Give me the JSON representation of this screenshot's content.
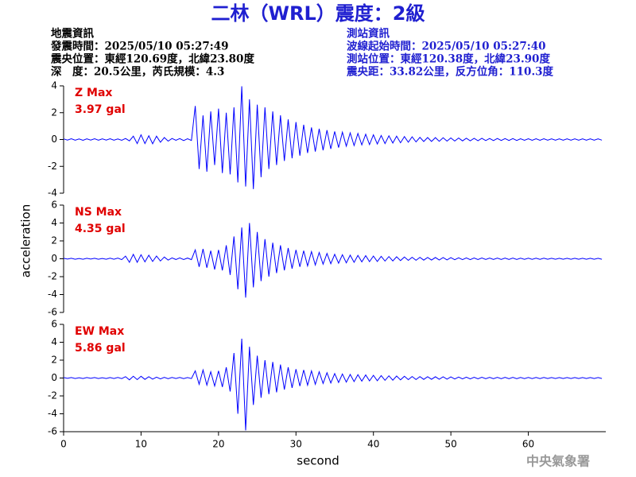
{
  "chart_data": {
    "type": "line",
    "title": "二林（WRL）震度：2級",
    "event_info": [
      "地震資訊",
      "發震時間：2025/05/10 05:27:49",
      "震央位置：東經120.69度，北緯23.80度",
      "深　度：20.5公里，芮氏規模：4.3"
    ],
    "station_info": [
      "測站資訊",
      "波線起始時間：2025/05/10 05:27:40",
      "測站位置：東經120.38度，北緯23.90度",
      "震央距：33.82公里，反方位角：110.3度"
    ],
    "xlabel": "second",
    "ylabel": "acceleration",
    "credit": "中央氣象署",
    "color": "#0000ff",
    "xlim": [
      0,
      70
    ],
    "xticks": [
      0,
      10,
      20,
      30,
      40,
      50,
      60
    ],
    "x": [
      0,
      0.5,
      1,
      1.5,
      2,
      2.5,
      3,
      3.5,
      4,
      4.5,
      5,
      5.5,
      6,
      6.5,
      7,
      7.5,
      8,
      8.5,
      9,
      9.5,
      10,
      10.5,
      11,
      11.5,
      12,
      12.5,
      13,
      13.5,
      14,
      14.5,
      15,
      15.5,
      16,
      16.5,
      17,
      17.5,
      18,
      18.5,
      19,
      19.5,
      20,
      20.5,
      21,
      21.5,
      22,
      22.5,
      23,
      23.5,
      24,
      24.5,
      25,
      25.5,
      26,
      26.5,
      27,
      27.5,
      28,
      28.5,
      29,
      29.5,
      30,
      30.5,
      31,
      31.5,
      32,
      32.5,
      33,
      33.5,
      34,
      34.5,
      35,
      35.5,
      36,
      36.5,
      37,
      37.5,
      38,
      38.5,
      39,
      39.5,
      40,
      40.5,
      41,
      41.5,
      42,
      42.5,
      43,
      43.5,
      44,
      44.5,
      45,
      45.5,
      46,
      46.5,
      47,
      47.5,
      48,
      48.5,
      49,
      49.5,
      50,
      50.5,
      51,
      51.5,
      52,
      52.5,
      53,
      53.5,
      54,
      54.5,
      55,
      55.5,
      56,
      56.5,
      57,
      57.5,
      58,
      58.5,
      59,
      59.5,
      60,
      60.5,
      61,
      61.5,
      62,
      62.5,
      63,
      63.5,
      64,
      64.5,
      65,
      65.5,
      66,
      66.5,
      67,
      67.5,
      68,
      68.5,
      69,
      69.5
    ],
    "panels": [
      {
        "name": "Z Max",
        "max_label": "3.97 gal",
        "ylim": [
          -4,
          4
        ],
        "yticks": [
          -4,
          -2,
          0,
          2,
          4
        ],
        "values": [
          0.05,
          -0.04,
          0.06,
          -0.05,
          0.04,
          -0.06,
          0.05,
          -0.04,
          0.06,
          -0.05,
          0.05,
          -0.04,
          0.06,
          -0.05,
          0.04,
          -0.06,
          0.08,
          -0.1,
          0.25,
          -0.3,
          0.35,
          -0.3,
          0.28,
          -0.32,
          0.25,
          -0.2,
          0.15,
          -0.12,
          0.08,
          -0.06,
          0.07,
          -0.08,
          0.06,
          -0.07,
          2.5,
          -2.2,
          1.8,
          -2.4,
          2.1,
          -1.9,
          2.3,
          -2.5,
          2.0,
          -2.6,
          2.4,
          -3.2,
          3.97,
          -3.5,
          3.0,
          -3.7,
          2.6,
          -2.8,
          2.4,
          -2.2,
          2.1,
          -1.9,
          1.8,
          -1.6,
          1.5,
          -1.4,
          1.3,
          -1.2,
          1.1,
          -1.0,
          0.9,
          -0.9,
          0.8,
          -0.8,
          0.7,
          -0.7,
          0.6,
          -0.6,
          0.55,
          -0.5,
          0.5,
          -0.45,
          0.45,
          -0.4,
          0.4,
          -0.38,
          0.35,
          -0.33,
          0.3,
          -0.3,
          0.28,
          -0.26,
          0.25,
          -0.24,
          0.22,
          -0.2,
          0.2,
          -0.18,
          0.16,
          -0.15,
          0.15,
          -0.14,
          0.14,
          -0.13,
          0.13,
          -0.12,
          0.12,
          -0.11,
          0.11,
          -0.1,
          0.1,
          -0.1,
          0.09,
          -0.09,
          0.09,
          -0.08,
          0.08,
          -0.08,
          0.08,
          -0.07,
          0.07,
          -0.07,
          0.07,
          -0.07,
          0.06,
          -0.06,
          0.06,
          -0.06,
          0.06,
          -0.06,
          0.06,
          -0.05,
          0.05,
          -0.05,
          0.05,
          -0.05,
          0.05,
          -0.05,
          0.05,
          -0.05,
          0.05,
          -0.05,
          0.05,
          -0.05,
          0.05,
          -0.05
        ]
      },
      {
        "name": "NS Max",
        "max_label": "4.35 gal",
        "ylim": [
          -6,
          6
        ],
        "yticks": [
          -6,
          -4,
          -2,
          0,
          2,
          4,
          6
        ],
        "values": [
          0.05,
          -0.04,
          0.05,
          -0.05,
          0.04,
          -0.05,
          0.05,
          -0.04,
          0.05,
          -0.05,
          0.04,
          -0.05,
          0.06,
          -0.05,
          0.08,
          -0.1,
          0.3,
          -0.4,
          0.5,
          -0.4,
          0.45,
          -0.35,
          0.4,
          -0.3,
          0.3,
          -0.25,
          0.2,
          -0.15,
          0.1,
          -0.08,
          0.1,
          -0.09,
          0.08,
          -0.1,
          1.0,
          -0.9,
          1.1,
          -1.0,
          0.9,
          -1.2,
          1.0,
          -1.3,
          1.5,
          -1.8,
          2.5,
          -3.4,
          3.5,
          -4.35,
          4.0,
          -3.2,
          3.0,
          -2.5,
          2.2,
          -2.0,
          1.8,
          -1.6,
          1.5,
          -1.3,
          1.2,
          -1.1,
          1.0,
          -0.9,
          0.9,
          -0.8,
          0.8,
          -0.7,
          0.7,
          -0.6,
          0.6,
          -0.55,
          0.5,
          -0.5,
          0.45,
          -0.45,
          0.4,
          -0.4,
          0.38,
          -0.35,
          0.35,
          -0.32,
          0.3,
          -0.3,
          0.28,
          -0.26,
          0.25,
          -0.24,
          0.22,
          -0.2,
          0.2,
          -0.18,
          0.17,
          -0.17,
          0.16,
          -0.15,
          0.15,
          -0.14,
          0.14,
          -0.13,
          0.13,
          -0.12,
          0.12,
          -0.11,
          0.11,
          -0.1,
          0.1,
          -0.1,
          0.09,
          -0.09,
          0.09,
          -0.08,
          0.08,
          -0.08,
          0.08,
          -0.07,
          0.07,
          -0.07,
          0.07,
          -0.07,
          0.06,
          -0.06,
          0.06,
          -0.06,
          0.06,
          -0.06,
          0.06,
          -0.05,
          0.05,
          -0.05,
          0.05,
          -0.05,
          0.05,
          -0.05,
          0.05,
          -0.05,
          0.05,
          -0.05,
          0.05,
          -0.05,
          0.05,
          -0.05
        ]
      },
      {
        "name": "EW Max",
        "max_label": "5.86 gal",
        "ylim": [
          -6,
          6
        ],
        "yticks": [
          -6,
          -4,
          -2,
          0,
          2,
          4,
          6
        ],
        "values": [
          0.05,
          -0.04,
          0.05,
          -0.05,
          0.04,
          -0.05,
          0.05,
          -0.04,
          0.05,
          -0.05,
          0.04,
          -0.05,
          0.05,
          -0.05,
          0.06,
          -0.06,
          0.15,
          -0.2,
          0.2,
          -0.18,
          0.2,
          -0.15,
          0.15,
          -0.12,
          0.1,
          -0.1,
          0.08,
          -0.08,
          0.06,
          -0.05,
          0.06,
          -0.06,
          0.05,
          -0.06,
          0.8,
          -0.7,
          0.9,
          -0.8,
          0.7,
          -0.9,
          0.8,
          -1.0,
          1.2,
          -1.5,
          2.8,
          -4.0,
          4.4,
          -5.86,
          3.5,
          -3.0,
          2.5,
          -2.2,
          2.0,
          -1.8,
          1.8,
          -1.6,
          1.5,
          -1.3,
          1.2,
          -1.1,
          1.0,
          -0.9,
          0.9,
          -0.8,
          0.8,
          -0.7,
          0.7,
          -0.6,
          0.6,
          -0.55,
          0.5,
          -0.5,
          0.45,
          -0.45,
          0.4,
          -0.4,
          0.38,
          -0.35,
          0.35,
          -0.32,
          0.3,
          -0.3,
          0.28,
          -0.26,
          0.25,
          -0.24,
          0.22,
          -0.2,
          0.2,
          -0.18,
          0.17,
          -0.17,
          0.16,
          -0.15,
          0.15,
          -0.14,
          0.14,
          -0.13,
          0.13,
          -0.12,
          0.12,
          -0.11,
          0.11,
          -0.1,
          0.1,
          -0.1,
          0.09,
          -0.09,
          0.09,
          -0.08,
          0.08,
          -0.08,
          0.08,
          -0.07,
          0.07,
          -0.07,
          0.07,
          -0.07,
          0.06,
          -0.06,
          0.06,
          -0.06,
          0.06,
          -0.06,
          0.06,
          -0.05,
          0.05,
          -0.05,
          0.05,
          -0.05,
          0.05,
          -0.05,
          0.05,
          -0.05,
          0.05,
          -0.05,
          0.05,
          -0.05,
          0.05,
          -0.05
        ]
      }
    ]
  }
}
